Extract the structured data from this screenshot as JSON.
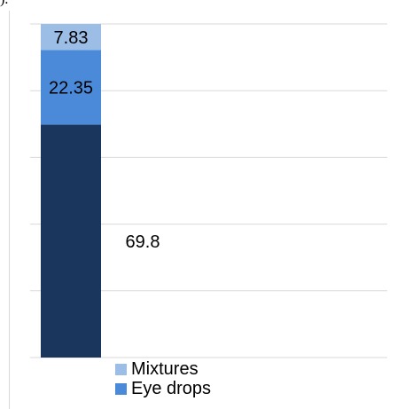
{
  "caption_fragment": ").",
  "colors": {
    "series_0": "#1b365d",
    "series_1": "#4a8ad9",
    "series_2": "#9cbde6",
    "grid": "#d9d9d9"
  },
  "chart_data": {
    "type": "bar",
    "stacked": true,
    "categories": [
      ""
    ],
    "series": [
      {
        "name": "",
        "values": [
          69.8
        ]
      },
      {
        "name": "Eye drops",
        "values": [
          22.35
        ]
      },
      {
        "name": "Mixtures",
        "values": [
          7.83
        ]
      }
    ],
    "data_labels": [
      "69.8",
      "22.35",
      "7.83"
    ],
    "ylim": [
      0,
      100
    ],
    "grid": true,
    "legend_position": "bottom",
    "legend": [
      "Mixtures",
      "Eye drops"
    ]
  }
}
